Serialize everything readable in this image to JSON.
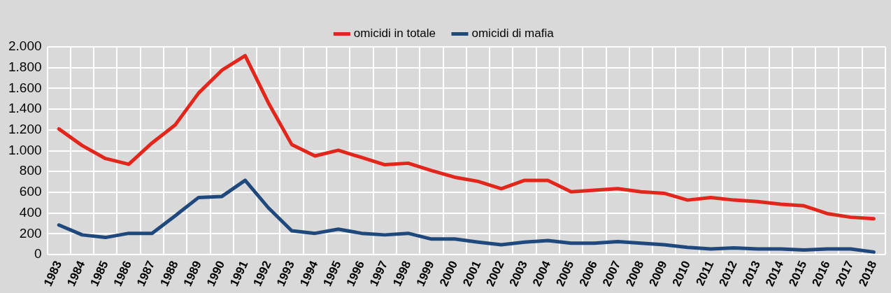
{
  "chart_data": {
    "type": "line",
    "categories": [
      "1983",
      "1984",
      "1985",
      "1986",
      "1987",
      "1988",
      "1989",
      "1990",
      "1991",
      "1992",
      "1993",
      "1994",
      "1995",
      "1996",
      "1997",
      "1998",
      "1999",
      "2000",
      "2001",
      "2002",
      "2003",
      "2004",
      "2005",
      "2006",
      "2007",
      "2008",
      "2009",
      "2010",
      "2011",
      "2012",
      "2013",
      "2014",
      "2015",
      "2016",
      "2017",
      "2018"
    ],
    "series": [
      {
        "name": "omicidi in totale",
        "color": "#e3261c",
        "values": [
          1210,
          1050,
          925,
          870,
          1075,
          1250,
          1555,
          1775,
          1915,
          1460,
          1060,
          950,
          1005,
          935,
          865,
          880,
          810,
          745,
          705,
          635,
          715,
          715,
          605,
          620,
          635,
          605,
          590,
          525,
          550,
          525,
          510,
          485,
          470,
          395,
          360,
          345
        ]
      },
      {
        "name": "omicidi di mafia",
        "color": "#1f497d",
        "values": [
          285,
          190,
          165,
          205,
          205,
          375,
          550,
          560,
          715,
          450,
          230,
          205,
          245,
          205,
          190,
          205,
          150,
          150,
          120,
          95,
          120,
          135,
          110,
          110,
          125,
          110,
          95,
          70,
          55,
          65,
          55,
          55,
          45,
          55,
          55,
          25
        ]
      }
    ],
    "ylim": [
      0,
      2000
    ],
    "yticks": [
      {
        "value": 0,
        "label": "0"
      },
      {
        "value": 200,
        "label": "200"
      },
      {
        "value": 400,
        "label": "400"
      },
      {
        "value": 600,
        "label": "600"
      },
      {
        "value": 800,
        "label": "800"
      },
      {
        "value": 1000,
        "label": "1.000"
      },
      {
        "value": 1200,
        "label": "1.200"
      },
      {
        "value": 1400,
        "label": "1.400"
      },
      {
        "value": 1600,
        "label": "1.600"
      },
      {
        "value": 1800,
        "label": "1.800"
      },
      {
        "value": 2000,
        "label": "2.000"
      }
    ],
    "grid": true,
    "legend": "top",
    "marker": "none",
    "line_style": "solid"
  }
}
